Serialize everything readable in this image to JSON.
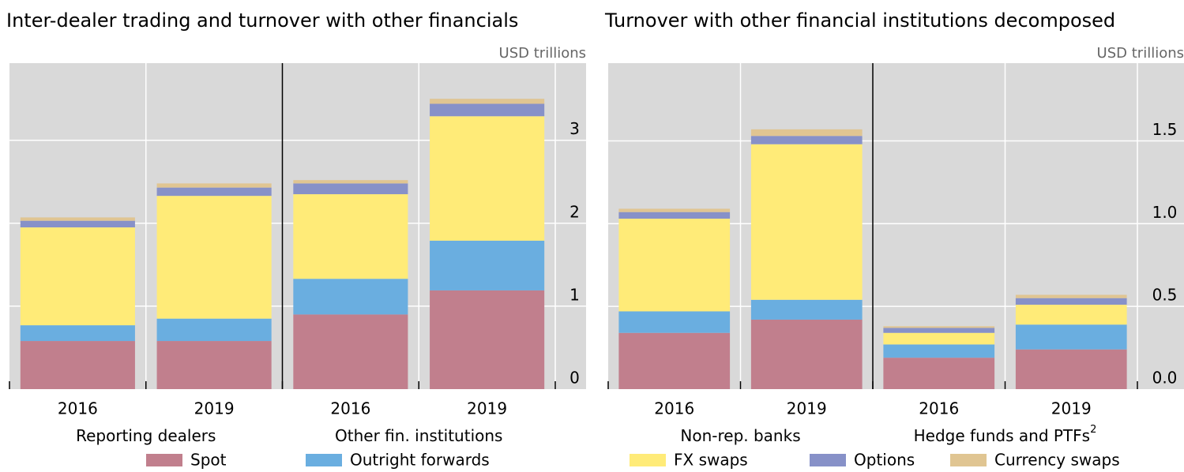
{
  "chart_data": [
    {
      "type": "bar",
      "stacked": true,
      "title": "Inter-dealer trading and turnover with other financials",
      "y_label": "USD trillions",
      "categories": [
        "2016",
        "2019",
        "2016",
        "2019"
      ],
      "groups": [
        "Reporting dealers",
        "Other fin. institutions"
      ],
      "ylim": [
        0,
        3.93
      ],
      "yticks": [
        0,
        1,
        2,
        3
      ],
      "grid": true,
      "series": [
        {
          "name": "Spot",
          "color": "#c17f8d",
          "values": [
            0.58,
            0.58,
            0.9,
            1.19
          ]
        },
        {
          "name": "Outright forwards",
          "color": "#6aaee0",
          "values": [
            0.19,
            0.27,
            0.43,
            0.6
          ]
        },
        {
          "name": "FX swaps",
          "color": "#ffeb78",
          "values": [
            1.18,
            1.48,
            1.02,
            1.5
          ]
        },
        {
          "name": "Options",
          "color": "#8791c8",
          "values": [
            0.08,
            0.1,
            0.13,
            0.15
          ]
        },
        {
          "name": "Currency swaps",
          "color": "#e0c592",
          "values": [
            0.04,
            0.05,
            0.04,
            0.06
          ]
        }
      ]
    },
    {
      "type": "bar",
      "stacked": true,
      "title": "Turnover with other financial institutions decomposed",
      "y_label": "USD trillions",
      "categories": [
        "2016",
        "2019",
        "2016",
        "2019"
      ],
      "groups": [
        "Non-rep. banks",
        "Hedge funds and PTFs"
      ],
      "group_note": "2",
      "ylim": [
        0,
        1.97
      ],
      "yticks": [
        {
          "value": 0,
          "label": "0.0"
        },
        0.5,
        {
          "value": 1,
          "label": "1.0"
        },
        1.5
      ],
      "grid": true,
      "series": [
        {
          "color": "#c17f8d",
          "values": [
            0.34,
            0.42,
            0.19,
            0.24
          ]
        },
        {
          "color": "#6aaee0",
          "values": [
            0.13,
            0.12,
            0.08,
            0.15
          ]
        },
        {
          "color": "#ffeb78",
          "values": [
            0.56,
            0.94,
            0.07,
            0.12
          ]
        },
        {
          "color": "#8791c8",
          "values": [
            0.04,
            0.05,
            0.03,
            0.04
          ]
        },
        {
          "color": "#e0c592",
          "values": [
            0.02,
            0.04,
            0.01,
            0.02
          ]
        }
      ]
    }
  ]
}
